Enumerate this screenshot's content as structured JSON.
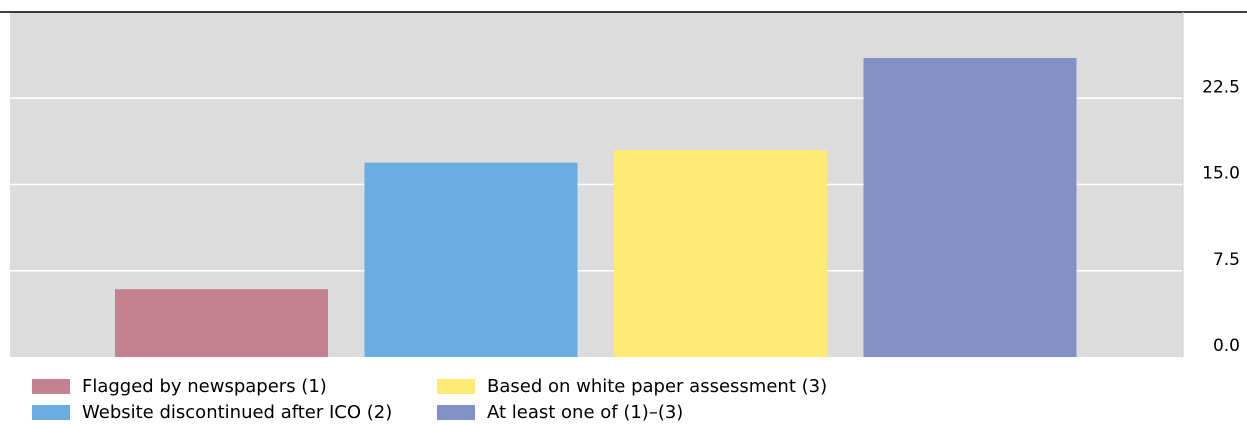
{
  "chart_data": {
    "type": "bar",
    "title": "",
    "xlabel": "",
    "ylabel": "",
    "ylim": [
      0,
      30
    ],
    "yticks": [
      "0.0",
      "7.5",
      "15.0",
      "22.5"
    ],
    "y_axis_side": "right",
    "grid": "horizontal",
    "legend_placement": "bottom",
    "series": [
      {
        "name": "Flagged by newspapers (1)",
        "value": 5.9,
        "color": "#c48291"
      },
      {
        "name": "Website discontinued after ICO (2)",
        "value": 16.9,
        "color": "#6aade1"
      },
      {
        "name": "Based on white paper assessment (3)",
        "value": 18.0,
        "color": "#ffea76"
      },
      {
        "name": "At least one of (1)–(3)",
        "value": 26.0,
        "color": "#8391c7"
      }
    ]
  }
}
